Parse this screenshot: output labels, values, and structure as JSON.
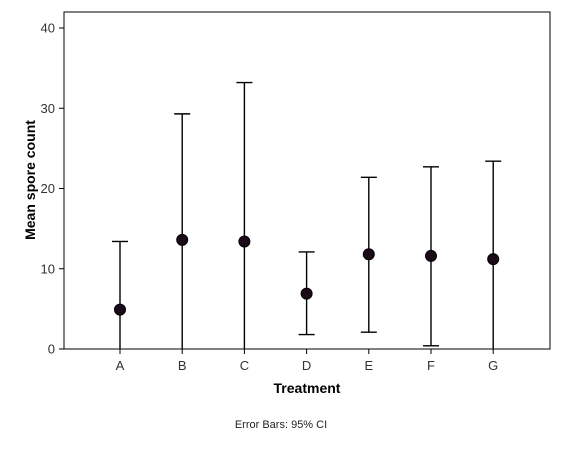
{
  "chart_data": {
    "type": "scatter",
    "subtype": "means-with-error-bars",
    "categories": [
      "A",
      "B",
      "C",
      "D",
      "E",
      "F",
      "G"
    ],
    "series": [
      {
        "mean": [
          4.9,
          13.6,
          13.4,
          6.9,
          11.8,
          11.6,
          11.2
        ],
        "ci_lower": [
          0.0,
          0.0,
          0.0,
          1.8,
          2.1,
          0.4,
          0.0
        ],
        "ci_upper": [
          13.4,
          29.3,
          33.2,
          12.1,
          21.4,
          22.7,
          23.4
        ]
      }
    ],
    "xlabel": "Treatment",
    "ylabel": "Mean spore count",
    "ylim": [
      0,
      40
    ],
    "yticks": [
      0,
      10,
      20,
      30,
      40
    ],
    "grid": false,
    "footnote": "Error Bars: 95% CI",
    "marker_color": "#1a0a1a",
    "line_color": "#000000"
  }
}
